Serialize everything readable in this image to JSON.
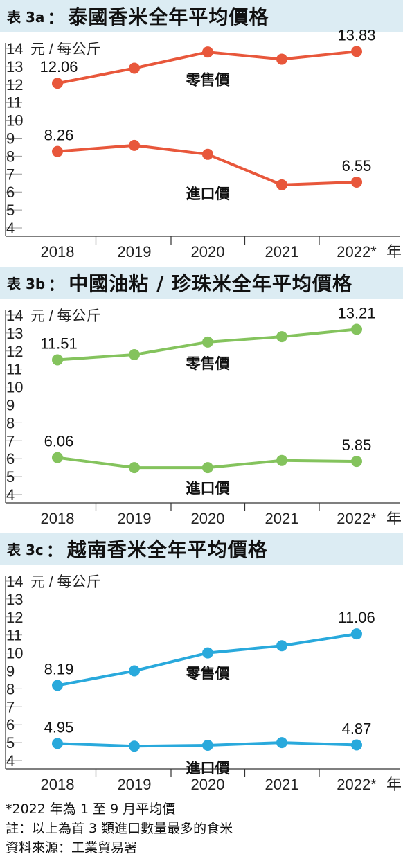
{
  "chart_data": [
    {
      "type": "line",
      "tag": "表 3a",
      "title": "泰國香米全年平均價格",
      "ylabel": "元 / 每公斤",
      "ylim": [
        4,
        14
      ],
      "yticks": [
        "4",
        "5",
        "6",
        "7",
        "8",
        "9",
        "10",
        "11",
        "12",
        "13",
        "14"
      ],
      "categories": [
        "2018",
        "2019",
        "2020",
        "2021",
        "2022*"
      ],
      "x_suffix": "年",
      "color": "#e8573b",
      "series": [
        {
          "name": "零售價",
          "values": [
            12.06,
            12.9,
            13.8,
            13.4,
            13.83
          ],
          "labels": [
            "12.06",
            null,
            null,
            null,
            "13.83"
          ]
        },
        {
          "name": "進口價",
          "values": [
            8.26,
            8.6,
            8.1,
            6.4,
            6.55
          ],
          "labels": [
            "8.26",
            null,
            null,
            null,
            "6.55"
          ]
        }
      ]
    },
    {
      "type": "line",
      "tag": "表 3b",
      "title": "中國油粘 / 珍珠米全年平均價格",
      "ylabel": "元 / 每公斤",
      "ylim": [
        4,
        14
      ],
      "yticks": [
        "4",
        "5",
        "6",
        "7",
        "8",
        "9",
        "10",
        "11",
        "12",
        "13",
        "14"
      ],
      "categories": [
        "2018",
        "2019",
        "2020",
        "2021",
        "2022*"
      ],
      "x_suffix": "年",
      "color": "#84c35d",
      "series": [
        {
          "name": "零售價",
          "values": [
            11.51,
            11.8,
            12.5,
            12.8,
            13.21
          ],
          "labels": [
            "11.51",
            null,
            null,
            null,
            "13.21"
          ]
        },
        {
          "name": "進口價",
          "values": [
            6.06,
            5.5,
            5.5,
            5.9,
            5.85
          ],
          "labels": [
            "6.06",
            null,
            null,
            null,
            "5.85"
          ]
        }
      ]
    },
    {
      "type": "line",
      "tag": "表 3c",
      "title": "越南香米全年平均價格",
      "ylabel": "元 / 每公斤",
      "ylim": [
        4,
        14
      ],
      "yticks": [
        "4",
        "5",
        "6",
        "7",
        "8",
        "9",
        "10",
        "11",
        "12",
        "13",
        "14"
      ],
      "categories": [
        "2018",
        "2019",
        "2020",
        "2021",
        "2022*"
      ],
      "x_suffix": "年",
      "color": "#29a9dc",
      "series": [
        {
          "name": "零售價",
          "values": [
            8.19,
            9.0,
            10.0,
            10.4,
            11.06
          ],
          "labels": [
            "8.19",
            null,
            null,
            null,
            "11.06"
          ]
        },
        {
          "name": "進口價",
          "values": [
            4.95,
            4.8,
            4.85,
            5.0,
            4.87
          ],
          "labels": [
            "4.95",
            null,
            null,
            null,
            "4.87"
          ]
        }
      ]
    }
  ],
  "notes": [
    "*2022 年為 1 至 9 月平均價",
    "註：以上為首 3 類進口數量最多的食米",
    "資料來源：工業貿易署"
  ]
}
